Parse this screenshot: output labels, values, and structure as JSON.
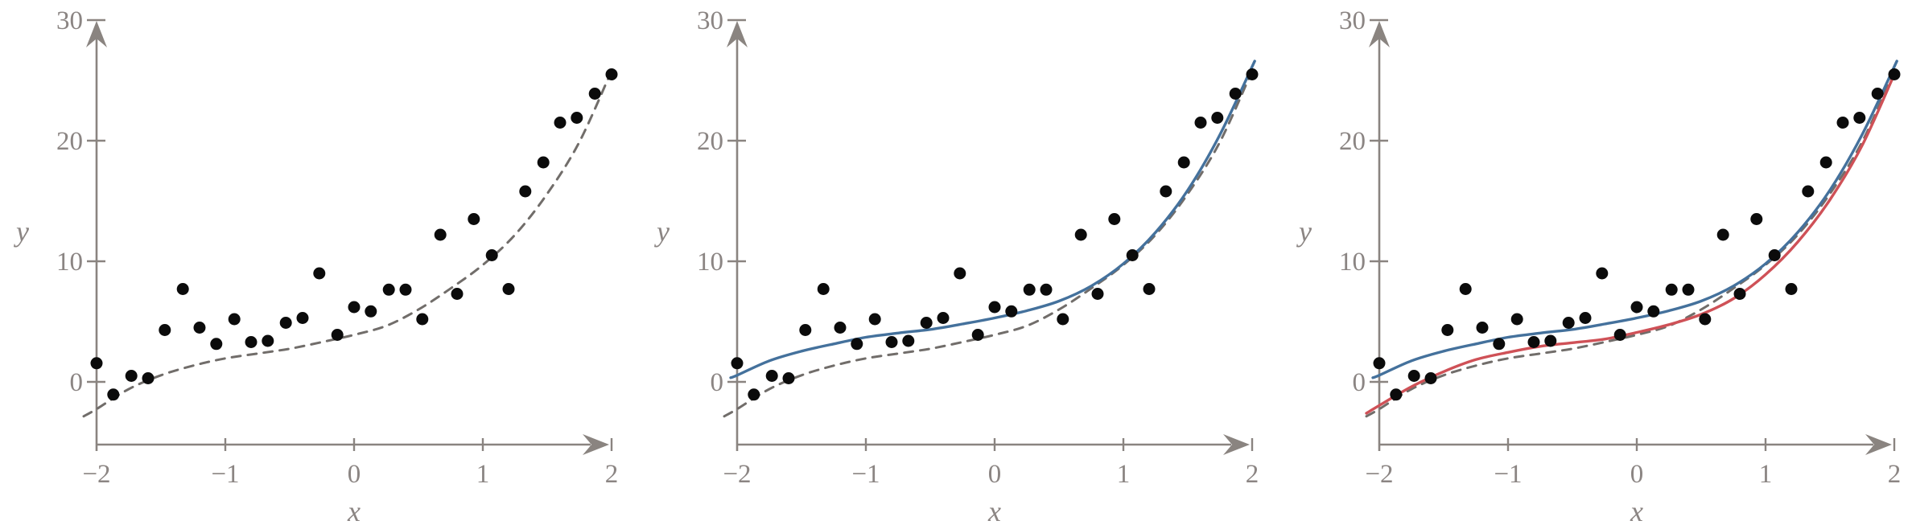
{
  "figure": {
    "background": "#ffffff",
    "description": "Three side-by-side scatter plots of the same noisy data; left shows dashed true curve, middle adds a blue fitted curve, right adds a red fitted curve"
  },
  "chart_data": {
    "type": "scatter",
    "title": "",
    "xlabel": "x",
    "ylabel": "y",
    "xlim": [
      -2.1,
      2.1
    ],
    "ylim": [
      -5.2,
      30
    ],
    "grid": false,
    "legend": "none",
    "axes": {
      "color": "#8a8480",
      "label_color": "#8b8583",
      "x_ticks": [
        {
          "value": -2,
          "label": "−2"
        },
        {
          "value": -1,
          "label": "−1"
        },
        {
          "value": 0,
          "label": "0"
        },
        {
          "value": 1,
          "label": "1"
        },
        {
          "value": 2,
          "label": "2"
        }
      ],
      "y_ticks": [
        {
          "value": 0,
          "label": "0"
        },
        {
          "value": 10,
          "label": "10"
        },
        {
          "value": 20,
          "label": "20"
        },
        {
          "value": 30,
          "label": "30"
        }
      ]
    },
    "scatter": {
      "color": "#0b0b0b",
      "radius": 7.5,
      "points": [
        [
          -2.0,
          1.55
        ],
        [
          -1.87,
          -1.05
        ],
        [
          -1.73,
          0.5
        ],
        [
          -1.6,
          0.3
        ],
        [
          -1.47,
          4.3
        ],
        [
          -1.33,
          7.7
        ],
        [
          -1.2,
          4.5
        ],
        [
          -1.07,
          3.15
        ],
        [
          -0.93,
          5.2
        ],
        [
          -0.8,
          3.3
        ],
        [
          -0.67,
          3.4
        ],
        [
          -0.53,
          4.9
        ],
        [
          -0.4,
          5.3
        ],
        [
          -0.27,
          9.0
        ],
        [
          -0.13,
          3.9
        ],
        [
          0.0,
          6.2
        ],
        [
          0.13,
          5.85
        ],
        [
          0.27,
          7.65
        ],
        [
          0.4,
          7.65
        ],
        [
          0.53,
          5.2
        ],
        [
          0.67,
          12.2
        ],
        [
          0.8,
          7.3
        ],
        [
          0.93,
          13.5
        ],
        [
          1.07,
          10.5
        ],
        [
          1.2,
          7.7
        ],
        [
          1.33,
          15.8
        ],
        [
          1.47,
          18.2
        ],
        [
          1.6,
          21.5
        ],
        [
          1.73,
          21.9
        ],
        [
          1.87,
          23.9
        ],
        [
          2.0,
          25.5
        ]
      ]
    },
    "curves": {
      "dashed_gray_curve": {
        "style": "dashed",
        "color": "#716d6a",
        "width": 3,
        "points": [
          [
            -2.1,
            -2.85
          ],
          [
            -2.0,
            -2.25
          ],
          [
            -1.75,
            -0.6
          ],
          [
            -1.5,
            0.55
          ],
          [
            -1.25,
            1.35
          ],
          [
            -1.0,
            1.95
          ],
          [
            -0.75,
            2.35
          ],
          [
            -0.5,
            2.75
          ],
          [
            -0.25,
            3.3
          ],
          [
            0.0,
            3.9
          ],
          [
            0.25,
            4.65
          ],
          [
            0.5,
            6.0
          ],
          [
            0.75,
            7.75
          ],
          [
            1.0,
            9.7
          ],
          [
            1.25,
            12.2
          ],
          [
            1.5,
            15.6
          ],
          [
            1.75,
            19.9
          ],
          [
            2.0,
            25.8
          ]
        ]
      },
      "blue_curve": {
        "style": "solid",
        "color": "#44719c",
        "width": 3.4,
        "points": [
          [
            -2.05,
            0.35
          ],
          [
            -2.0,
            0.55
          ],
          [
            -1.75,
            1.75
          ],
          [
            -1.5,
            2.55
          ],
          [
            -1.25,
            3.15
          ],
          [
            -1.0,
            3.7
          ],
          [
            -0.75,
            4.05
          ],
          [
            -0.5,
            4.35
          ],
          [
            -0.25,
            4.8
          ],
          [
            0.0,
            5.3
          ],
          [
            0.25,
            5.9
          ],
          [
            0.5,
            6.7
          ],
          [
            0.75,
            7.95
          ],
          [
            1.0,
            9.8
          ],
          [
            1.25,
            12.4
          ],
          [
            1.5,
            15.9
          ],
          [
            1.75,
            20.5
          ],
          [
            2.02,
            26.6
          ]
        ]
      },
      "red_curve": {
        "style": "solid",
        "color": "#cf5157",
        "width": 3.4,
        "points": [
          [
            -2.1,
            -2.6
          ],
          [
            -2.0,
            -1.95
          ],
          [
            -1.75,
            -0.4
          ],
          [
            -1.5,
            0.85
          ],
          [
            -1.25,
            1.85
          ],
          [
            -1.0,
            2.45
          ],
          [
            -0.75,
            2.95
          ],
          [
            -0.5,
            3.25
          ],
          [
            -0.25,
            3.55
          ],
          [
            0.0,
            4.1
          ],
          [
            0.25,
            4.75
          ],
          [
            0.5,
            5.6
          ],
          [
            0.75,
            6.9
          ],
          [
            1.0,
            8.9
          ],
          [
            1.25,
            11.6
          ],
          [
            1.5,
            15.1
          ],
          [
            1.75,
            19.6
          ],
          [
            2.0,
            25.5
          ]
        ]
      }
    },
    "panels": [
      {
        "name": "panel-data-and-true-curve",
        "curves": [
          "dashed_gray_curve"
        ]
      },
      {
        "name": "panel-with-blue-fit",
        "curves": [
          "dashed_gray_curve",
          "blue_curve"
        ]
      },
      {
        "name": "panel-with-blue-and-red-fit",
        "curves": [
          "dashed_gray_curve",
          "blue_curve",
          "red_curve"
        ]
      }
    ]
  }
}
